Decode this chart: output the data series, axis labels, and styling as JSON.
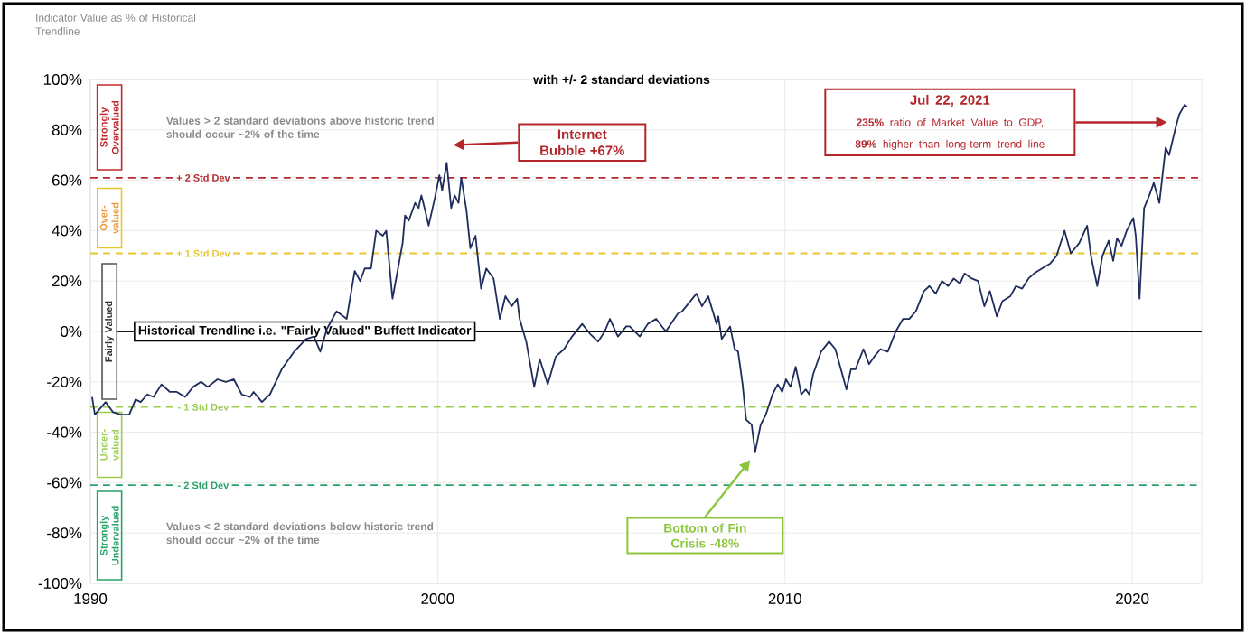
{
  "chart_data": {
    "type": "line",
    "subtitle": "with +/- 2 standard deviations",
    "ylabel": "Indicator Value as % of Historical Trendline",
    "xlim": [
      1990,
      2022
    ],
    "xticks": [
      1990,
      2000,
      2010,
      2020
    ],
    "ylim": [
      -100,
      100
    ],
    "yticks": [
      {
        "value": -100,
        "label": "-100%"
      },
      {
        "value": -80,
        "label": "-80%"
      },
      {
        "value": -60,
        "label": "-60%"
      },
      {
        "value": -40,
        "label": "-40%"
      },
      {
        "value": -20,
        "label": "-20%"
      },
      {
        "value": 0,
        "label": "0%"
      },
      {
        "value": 20,
        "label": "20%"
      },
      {
        "value": 40,
        "label": "40%"
      },
      {
        "value": 60,
        "label": "60%"
      },
      {
        "value": 80,
        "label": "80%"
      },
      {
        "value": 100,
        "label": "100%"
      }
    ],
    "grid": true,
    "marker": "none",
    "line_style": "solid",
    "series": [
      {
        "color": "#1f2d5c",
        "x": [
          1990.05,
          1990.13,
          1990.44,
          1990.65,
          1990.88,
          1991.12,
          1991.3,
          1991.45,
          1991.64,
          1991.82,
          1992.05,
          1992.29,
          1992.49,
          1992.73,
          1992.96,
          1993.19,
          1993.38,
          1993.66,
          1993.9,
          1994.13,
          1994.36,
          1994.6,
          1994.7,
          1994.94,
          1995.17,
          1995.51,
          1995.87,
          1996.21,
          1996.44,
          1996.62,
          1996.81,
          1997.09,
          1997.38,
          1997.61,
          1997.77,
          1997.9,
          1998.08,
          1998.23,
          1998.42,
          1998.52,
          1998.7,
          1998.99,
          1999.06,
          1999.17,
          1999.35,
          1999.45,
          1999.53,
          1999.64,
          1999.74,
          1999.92,
          2000.05,
          2000.13,
          2000.26,
          2000.39,
          2000.49,
          2000.6,
          2000.68,
          2000.83,
          2000.94,
          2001.09,
          2001.25,
          2001.4,
          2001.61,
          2001.79,
          2001.95,
          2002.13,
          2002.29,
          2002.36,
          2002.55,
          2002.78,
          2002.94,
          2003.17,
          2003.4,
          2003.64,
          2003.87,
          2004.16,
          2004.39,
          2004.62,
          2004.81,
          2004.96,
          2005.19,
          2005.43,
          2005.53,
          2005.82,
          2006.05,
          2006.29,
          2006.57,
          2006.91,
          2007.04,
          2007.45,
          2007.61,
          2007.79,
          2008.03,
          2008.08,
          2008.18,
          2008.42,
          2008.55,
          2008.65,
          2008.78,
          2008.88,
          2009.04,
          2009.14,
          2009.3,
          2009.45,
          2009.64,
          2009.79,
          2009.92,
          2010.03,
          2010.16,
          2010.31,
          2010.47,
          2010.6,
          2010.7,
          2010.81,
          2011.04,
          2011.27,
          2011.45,
          2011.61,
          2011.77,
          2011.9,
          2012.03,
          2012.26,
          2012.42,
          2012.57,
          2012.75,
          2012.96,
          2013.19,
          2013.4,
          2013.58,
          2013.77,
          2014.0,
          2014.16,
          2014.34,
          2014.52,
          2014.7,
          2014.86,
          2015.04,
          2015.17,
          2015.38,
          2015.56,
          2015.74,
          2015.9,
          2016.1,
          2016.26,
          2016.49,
          2016.65,
          2016.83,
          2017.01,
          2017.17,
          2017.4,
          2017.64,
          2017.82,
          2018.05,
          2018.23,
          2018.47,
          2018.7,
          2018.81,
          2018.99,
          2019.14,
          2019.32,
          2019.45,
          2019.56,
          2019.69,
          2019.84,
          2020.03,
          2020.1,
          2020.21,
          2020.34,
          2020.49,
          2020.62,
          2020.78,
          2020.96,
          2021.06,
          2021.25,
          2021.35,
          2021.51,
          2021.58
        ],
        "values": [
          -26,
          -33,
          -28,
          -32,
          -33,
          -33,
          -27,
          -28,
          -25,
          -26,
          -21,
          -24,
          -24,
          -26,
          -22,
          -20,
          -22,
          -19,
          -20,
          -19,
          -25,
          -26,
          -24,
          -28,
          -25,
          -15,
          -8,
          -3,
          -2,
          -8,
          1,
          8,
          5,
          24,
          20,
          25,
          25,
          40,
          38,
          40,
          13,
          35,
          46,
          44,
          51,
          49,
          54,
          48,
          42,
          53,
          62,
          56,
          67,
          49,
          54,
          51,
          61,
          48,
          33,
          38,
          17,
          25,
          21,
          5,
          14,
          10,
          13,
          5,
          -4,
          -22,
          -11,
          -21,
          -10,
          -7,
          -2,
          3,
          -1,
          -4,
          0,
          5,
          -2,
          2,
          2,
          -2,
          3,
          5,
          0,
          7,
          8,
          15,
          10,
          14,
          3,
          6,
          -3,
          2,
          -7,
          -8,
          -21,
          -35,
          -37,
          -48,
          -37,
          -33,
          -25,
          -21,
          -24,
          -19,
          -22,
          -14,
          -25,
          -23,
          -25,
          -17,
          -8,
          -4,
          -7,
          -15,
          -23,
          -15,
          -15,
          -7,
          -13,
          -10,
          -7,
          -8,
          0,
          5,
          5,
          8,
          16,
          18,
          15,
          20,
          18,
          21,
          19,
          23,
          21,
          20,
          10,
          16,
          6,
          12,
          14,
          18,
          17,
          21,
          23,
          25,
          27,
          30,
          40,
          31,
          35,
          42,
          30,
          18,
          30,
          36,
          28,
          37,
          34,
          40,
          45,
          38,
          13,
          49,
          54,
          59,
          51,
          73,
          70,
          81,
          86,
          90,
          89
        ]
      }
    ],
    "ref_lines": [
      {
        "axis": "y",
        "value": 61,
        "label": "+ 2 Std Dev",
        "color": "#b22a2e",
        "line_style": "dashed"
      },
      {
        "axis": "y",
        "value": 31,
        "label": "+ 1 Std Dev",
        "color": "#e8c630",
        "line_style": "dashed"
      },
      {
        "axis": "y",
        "value": 0,
        "label": "Historical Trendline i.e. \"Fairly Valued\" Buffett Indicator",
        "color": "#000000",
        "line_style": "solid"
      },
      {
        "axis": "y",
        "value": -30,
        "label": "- 1 Std Dev",
        "color": "#9acd4e",
        "line_style": "dashed"
      },
      {
        "axis": "y",
        "value": -61,
        "label": "- 2 Std Dev",
        "color": "#27a36a",
        "line_style": "dashed"
      }
    ],
    "annotations": [
      "Internet Bubble +67%",
      "Jul 22, 2021",
      "**235%** ratio of Market Value to GDP, **89%** higher than long-term trend line",
      "Bottom of Fin Crisis -48%",
      "Values > 2 standard deviations above historic trend should occur ~2% of the time",
      "Values < 2 standard deviations below historic trend should occur ~2% of the time",
      "Strongly Overvalued",
      "Over-valued",
      "Fairly Valued",
      "Under-valued",
      "Strongly Undervalued"
    ]
  }
}
